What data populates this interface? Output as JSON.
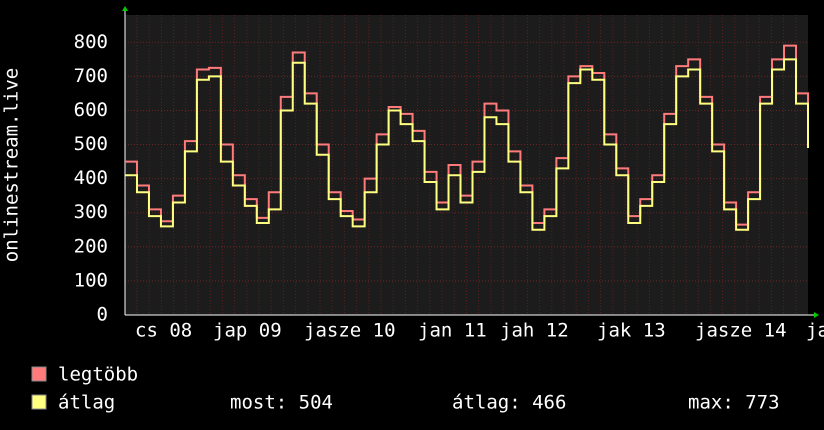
{
  "chart_data": {
    "type": "line",
    "ylabel": "onlinestream.live",
    "x_labels": [
      "cs 08",
      "jap 09",
      "jasze 10",
      "jan 11",
      "jah 12",
      "jak 13",
      "jasze 14",
      "ja"
    ],
    "ylim": [
      0,
      880
    ],
    "yticks": [
      0,
      100,
      200,
      300,
      400,
      500,
      600,
      700,
      800
    ],
    "grid": true,
    "series": [
      {
        "name": "legtöbb",
        "color": "#ff7b7b",
        "values": [
          450,
          380,
          310,
          275,
          350,
          510,
          720,
          725,
          500,
          410,
          340,
          285,
          360,
          640,
          770,
          650,
          500,
          360,
          305,
          280,
          400,
          530,
          610,
          590,
          540,
          420,
          330,
          440,
          350,
          450,
          620,
          600,
          480,
          380,
          270,
          310,
          460,
          700,
          730,
          710,
          530,
          430,
          290,
          340,
          410,
          590,
          730,
          750,
          640,
          500,
          330,
          265,
          360,
          640,
          750,
          790,
          650,
          530
        ]
      },
      {
        "name": "átlag",
        "color": "#ffff80",
        "values": [
          410,
          360,
          290,
          260,
          330,
          480,
          690,
          700,
          450,
          380,
          320,
          270,
          310,
          600,
          740,
          620,
          470,
          340,
          290,
          260,
          360,
          500,
          600,
          560,
          510,
          390,
          310,
          410,
          330,
          420,
          580,
          560,
          450,
          360,
          250,
          290,
          430,
          680,
          720,
          690,
          500,
          410,
          270,
          320,
          390,
          560,
          700,
          720,
          620,
          480,
          310,
          250,
          340,
          620,
          720,
          750,
          620,
          490
        ]
      }
    ],
    "legend_stats": [
      "most: 504",
      "átlag: 466",
      "max: 773"
    ]
  }
}
